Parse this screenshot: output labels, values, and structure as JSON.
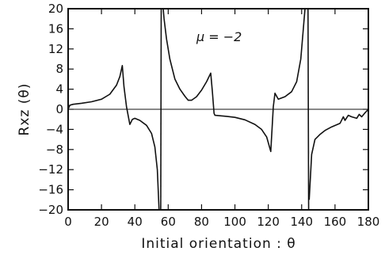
{
  "chart_data": {
    "type": "line",
    "xlabel": "Initial orientation : θ",
    "ylabel": "Rxz (θ)",
    "annotation": "μ = −2",
    "xlim": [
      0,
      180
    ],
    "ylim": [
      -20,
      20
    ],
    "xticks": [
      0,
      20,
      40,
      60,
      80,
      100,
      120,
      140,
      160,
      180
    ],
    "yticks": [
      20,
      16,
      12,
      8,
      4,
      0,
      -4,
      -8,
      -12,
      -16,
      -20
    ],
    "ytick_labels": [
      "20",
      "16",
      "12",
      "8",
      "4",
      "0",
      "−4",
      "−8",
      "−12",
      "−16",
      "−20"
    ],
    "reference_line_y": 0,
    "series": [
      {
        "segments": [
          [
            [
              0,
              0
            ],
            [
              1,
              0.8
            ],
            [
              3,
              1.0
            ],
            [
              8,
              1.2
            ],
            [
              14,
              1.5
            ],
            [
              20,
              2.0
            ],
            [
              25,
              3.0
            ],
            [
              29,
              4.8
            ],
            [
              31,
              6.5
            ],
            [
              32.5,
              8.7
            ],
            [
              33.5,
              4.5
            ],
            [
              35,
              0.5
            ],
            [
              37,
              -3.0
            ],
            [
              38.5,
              -2.0
            ],
            [
              40,
              -1.8
            ],
            [
              43,
              -2.2
            ],
            [
              47,
              -3.2
            ],
            [
              50,
              -4.8
            ],
            [
              52,
              -7.5
            ],
            [
              53.5,
              -12
            ],
            [
              54.5,
              -20
            ]
          ],
          [
            [
              55.5,
              -20
            ],
            [
              55.8,
              20
            ]
          ],
          [
            [
              57,
              20
            ],
            [
              57.5,
              18
            ],
            [
              59,
              14
            ],
            [
              61,
              10
            ],
            [
              64,
              6
            ],
            [
              67,
              4
            ],
            [
              70,
              2.6
            ],
            [
              72,
              1.8
            ],
            [
              74,
              1.8
            ],
            [
              77,
              2.5
            ],
            [
              80,
              3.8
            ],
            [
              83,
              5.5
            ],
            [
              85.5,
              7.2
            ],
            [
              86.5,
              3.5
            ],
            [
              87.5,
              -0.8
            ],
            [
              88,
              -1.2
            ],
            [
              95,
              -1.4
            ],
            [
              100,
              -1.6
            ],
            [
              106,
              -2.1
            ],
            [
              112,
              -3.0
            ],
            [
              116,
              -4.0
            ],
            [
              119,
              -5.5
            ],
            [
              121.5,
              -8.4
            ],
            [
              123,
              0.5
            ],
            [
              124,
              3.2
            ],
            [
              126,
              2.0
            ],
            [
              130,
              2.5
            ],
            [
              134,
              3.5
            ],
            [
              137,
              5.5
            ],
            [
              139.5,
              10
            ],
            [
              141,
              16
            ],
            [
              142,
              20
            ]
          ],
          [
            [
              143,
              20
            ],
            [
              143.8,
              20
            ],
            [
              144.2,
              -20
            ]
          ],
          [
            [
              144.5,
              -18
            ],
            [
              146,
              -9
            ],
            [
              148,
              -6
            ],
            [
              151,
              -5
            ],
            [
              154,
              -4.2
            ],
            [
              158,
              -3.5
            ],
            [
              163,
              -2.8
            ],
            [
              165,
              -1.5
            ],
            [
              166,
              -2.2
            ],
            [
              168,
              -1.2
            ],
            [
              170,
              -1.5
            ],
            [
              173,
              -1.8
            ],
            [
              174.5,
              -1.0
            ],
            [
              176,
              -1.5
            ],
            [
              178,
              -0.7
            ],
            [
              180,
              0
            ]
          ]
        ]
      }
    ]
  }
}
